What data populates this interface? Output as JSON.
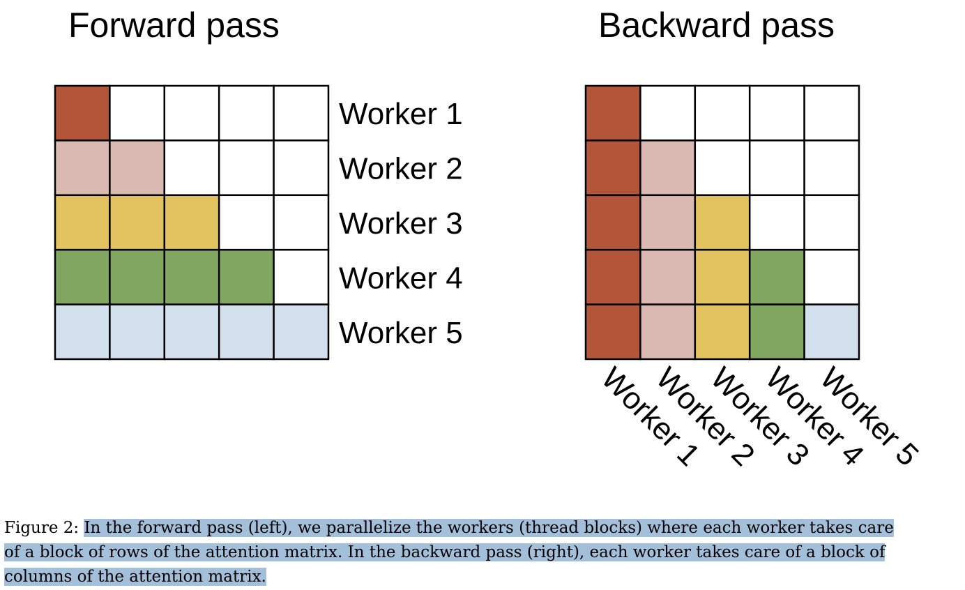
{
  "figure": {
    "forward": {
      "title": "Forward pass",
      "row_labels": [
        "Worker 1",
        "Worker 2",
        "Worker 3",
        "Worker 4",
        "Worker 5"
      ]
    },
    "backward": {
      "title": "Backward pass",
      "col_labels": [
        "Worker 1",
        "Worker 2",
        "Worker 3",
        "Worker 4",
        "Worker 5"
      ]
    },
    "worker_colors": [
      "#b25538",
      "#d9b9b1",
      "#e3c35f",
      "#80a660",
      "#d3e1ee"
    ],
    "empty_color": "#ffffff",
    "grid_size": 5
  },
  "caption": {
    "prefix": "Figure 2: ",
    "line1": "In the forward pass (left), we parallelize the workers (thread blocks) where each worker takes care",
    "line2": "of a block of rows of the attention matrix. In the backward pass (right), each worker takes care of a block of",
    "line3": "columns of the attention matrix.",
    "highlight_color": "#a3bfd9"
  }
}
